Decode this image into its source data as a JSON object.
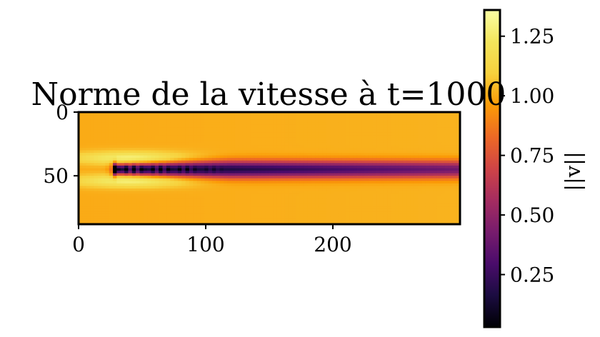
{
  "chart_data": [
    {
      "type": "heatmap",
      "title": "Norme de la vitesse à t=1000",
      "xlabel": "",
      "ylabel": "",
      "xlim": [
        0,
        300
      ],
      "ylim": [
        88,
        0
      ],
      "x_ticks": [
        "0",
        "100",
        "200"
      ],
      "y_ticks": [
        "0",
        "50"
      ],
      "colormap": "inferno",
      "field": {
        "freestream": 1.0,
        "obstacle_center": [
          30,
          43
        ],
        "wake_centerline_y": 43,
        "wake_min": 0.05,
        "wake_end_x": 295
      },
      "colorbar": {
        "label": "||v||",
        "vmin": 0.03,
        "vmax": 1.36,
        "ticks": [
          "0.25",
          "0.50",
          "0.75",
          "1.00",
          "1.25"
        ],
        "tick_values": [
          0.25,
          0.5,
          0.75,
          1.0,
          1.25
        ]
      }
    }
  ]
}
